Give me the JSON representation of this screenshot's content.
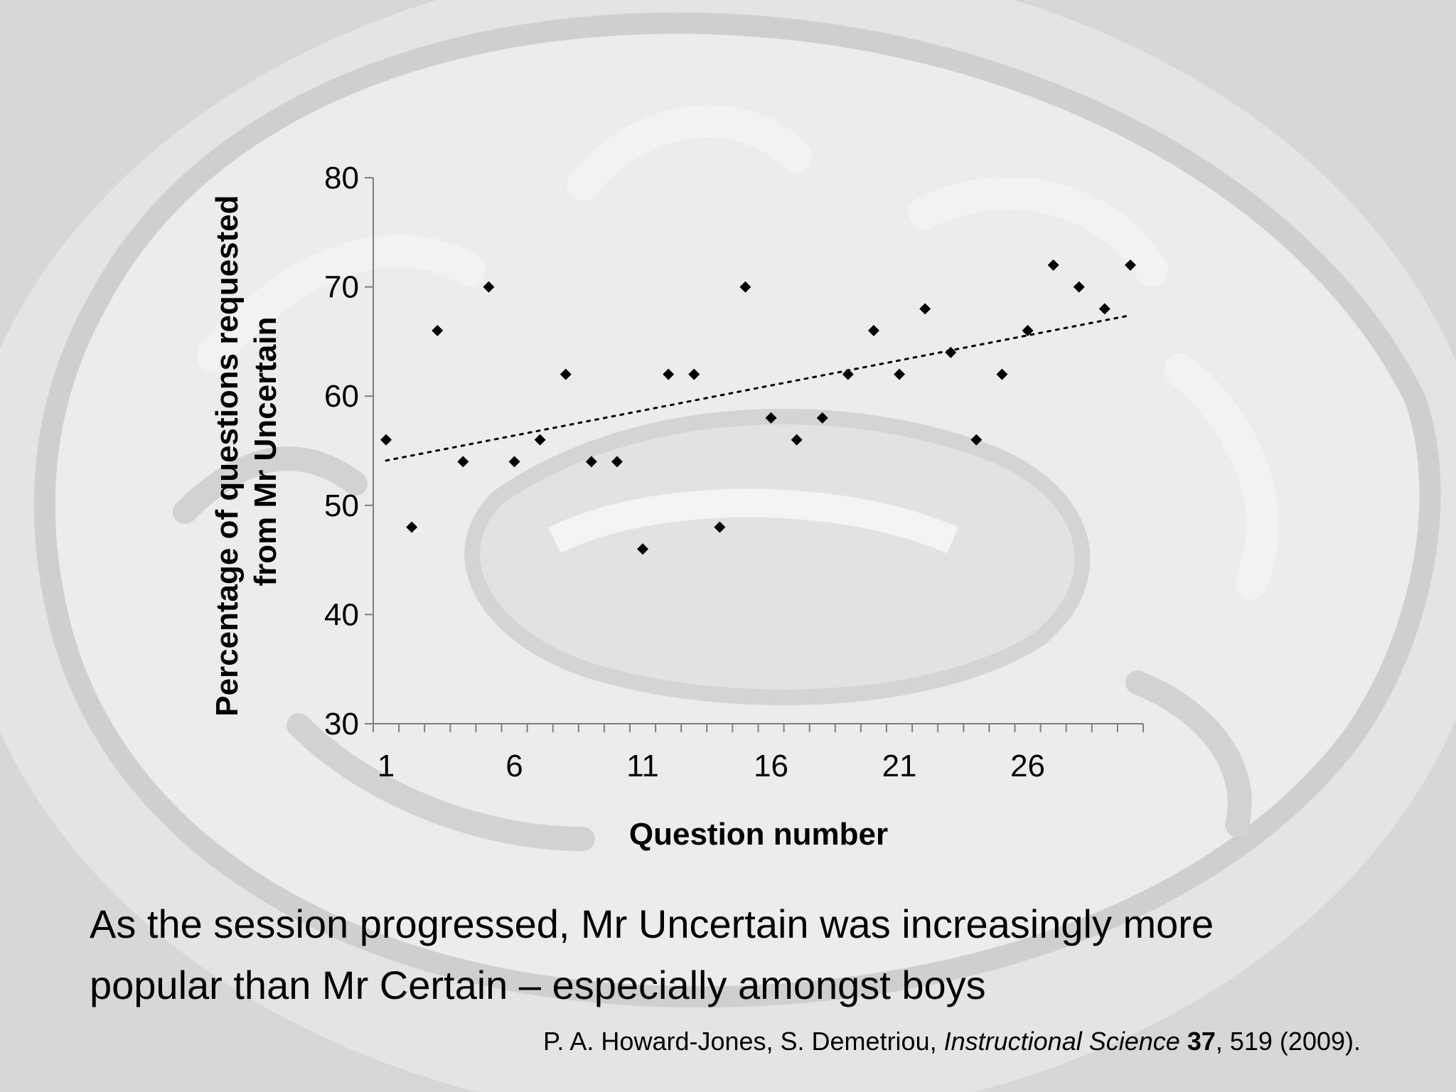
{
  "caption": {
    "line1": "As the session progressed, Mr Uncertain was increasingly more",
    "line2": "popular than Mr Certain – especially amongst boys"
  },
  "citation": {
    "authors": "P. A. Howard-Jones, S. Demetriou, ",
    "journal": "Instructional Science",
    "volume": "37",
    "rest": ", 519 (2009)."
  },
  "chart_data": {
    "type": "scatter",
    "title": "",
    "xlabel": "Question number",
    "ylabel_lines": [
      "Percentage of questions requested",
      "from Mr Uncertain"
    ],
    "xlim": [
      0.5,
      30.5
    ],
    "ylim": [
      30,
      80
    ],
    "x_ticks": [
      1,
      6,
      11,
      16,
      21,
      26
    ],
    "y_ticks": [
      30,
      40,
      50,
      60,
      70,
      80
    ],
    "grid": false,
    "marker": "diamond",
    "marker_color": "#000000",
    "x": [
      1,
      2,
      3,
      4,
      5,
      6,
      7,
      8,
      9,
      10,
      11,
      12,
      13,
      14,
      15,
      16,
      17,
      18,
      19,
      20,
      21,
      22,
      23,
      24,
      25,
      26,
      27,
      28,
      29,
      30
    ],
    "y": [
      56,
      48,
      66,
      54,
      70,
      54,
      56,
      62,
      54,
      54,
      46,
      62,
      62,
      48,
      70,
      58,
      56,
      58,
      62,
      66,
      62,
      68,
      64,
      56,
      62,
      66,
      72,
      70,
      68,
      72
    ],
    "trendline": {
      "type": "linear",
      "style": "dotted",
      "from": [
        1,
        54.1
      ],
      "to": [
        30,
        67.4
      ]
    }
  }
}
